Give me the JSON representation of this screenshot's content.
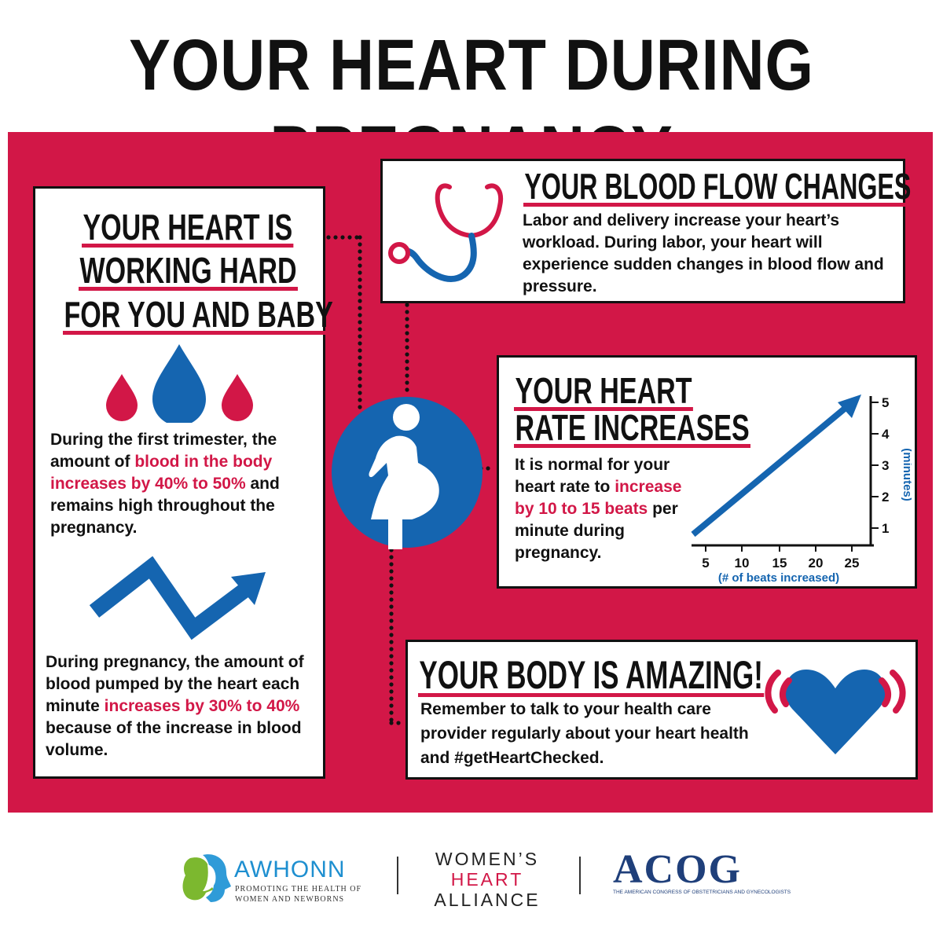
{
  "title": "YOUR HEART DURING PREGNANCY",
  "colors": {
    "accent_red": "#d21747",
    "accent_blue": "#1565b0",
    "black": "#111111"
  },
  "left_box": {
    "heading_lines": [
      "YOUR HEART IS",
      "WORKING HARD",
      "FOR YOU AND BABY"
    ],
    "icon": "blood-drops-icon",
    "para1": {
      "before": "During the first trimester, the amount of ",
      "highlight": "blood in the body increases by 40% to 50%",
      "after": " and remains high throughout the pregnancy."
    },
    "icon2": "zigzag-arrow-icon",
    "para2": {
      "before": "During pregnancy, the amount of blood pumped by the heart each minute ",
      "highlight": "increases by 30% to 40%",
      "after": " because of the increase in blood volume."
    }
  },
  "center_icon": "pregnant-woman-icon",
  "blood_flow": {
    "heading": "YOUR BLOOD FLOW CHANGES",
    "icon": "stethoscope-icon",
    "text": "Labor and delivery increase your heart’s workload. During labor, your heart will experience sudden changes in blood flow and pressure."
  },
  "heart_rate": {
    "heading_lines": [
      "YOUR HEART",
      "RATE INCREASES"
    ],
    "before": "It is normal for your heart rate to ",
    "highlight": "increase by 10 to 15 beats",
    "after": " per minute during pregnancy.",
    "chart": {
      "x_ticks": [
        "5",
        "10",
        "15",
        "20",
        "25"
      ],
      "y_ticks": [
        "1",
        "2",
        "3",
        "4",
        "5"
      ],
      "xlabel": "(# of beats increased)",
      "ylabel": "(minutes)"
    }
  },
  "body_amazing": {
    "heading": "YOUR BODY IS AMAZING!",
    "text": "Remember to talk to your health care provider regularly about your heart health and #getHeartChecked.",
    "icon": "beating-heart-icon"
  },
  "footer": {
    "awhonn": {
      "name": "AWHONN",
      "tagline_1": "PROMOTING THE HEALTH OF",
      "tagline_2": "WOMEN AND NEWBORNS"
    },
    "wha": {
      "line1": "WOMEN’S",
      "line2": "HEART",
      "line3": "ALLIANCE"
    },
    "acog": {
      "name": "ACOG",
      "tagline": "THE AMERICAN CONGRESS OF OBSTETRICIANS AND GYNECOLOGISTS"
    }
  }
}
